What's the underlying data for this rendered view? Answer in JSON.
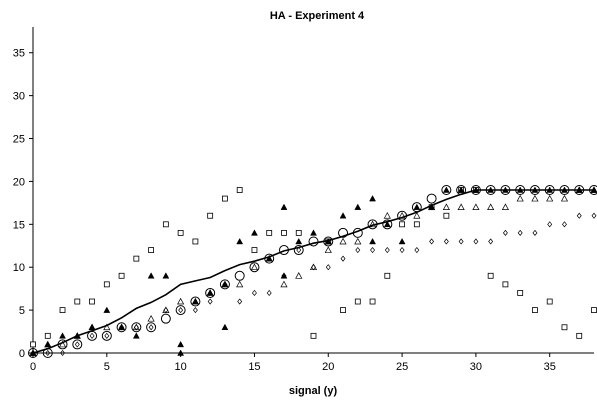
{
  "chart_data": {
    "type": "scatter",
    "title": "HA - Experiment 4",
    "xlabel": "signal (y)",
    "ylabel": "",
    "xlim": [
      0,
      38
    ],
    "ylim": [
      0,
      38
    ],
    "xticks": [
      0,
      5,
      10,
      15,
      20,
      25,
      30,
      35
    ],
    "yticks": [
      0,
      5,
      10,
      15,
      20,
      25,
      30,
      35
    ],
    "grid": false,
    "legend": "none",
    "series": [
      {
        "marker": "open-square",
        "points": [
          [
            0,
            1
          ],
          [
            1,
            2
          ],
          [
            2,
            5
          ],
          [
            3,
            6
          ],
          [
            4,
            6
          ],
          [
            5,
            8
          ],
          [
            6,
            9
          ],
          [
            7,
            11
          ],
          [
            8,
            12
          ],
          [
            9,
            15
          ],
          [
            10,
            14
          ],
          [
            11,
            13
          ],
          [
            12,
            16
          ],
          [
            13,
            18
          ],
          [
            14,
            19
          ],
          [
            15,
            12
          ],
          [
            16,
            14
          ],
          [
            17,
            14
          ],
          [
            18,
            14
          ],
          [
            19,
            2
          ],
          [
            20,
            13
          ],
          [
            21,
            5
          ],
          [
            22,
            6
          ],
          [
            23,
            6
          ],
          [
            24,
            9
          ],
          [
            25,
            15
          ],
          [
            26,
            15
          ],
          [
            27,
            17
          ],
          [
            28,
            16
          ],
          [
            29,
            19
          ],
          [
            30,
            19
          ],
          [
            31,
            9
          ],
          [
            32,
            8
          ],
          [
            33,
            7
          ],
          [
            34,
            5
          ],
          [
            35,
            6
          ],
          [
            36,
            3
          ],
          [
            37,
            2
          ],
          [
            38,
            5
          ]
        ]
      },
      {
        "marker": "filled-triangle",
        "points": [
          [
            0,
            0
          ],
          [
            1,
            1
          ],
          [
            2,
            2
          ],
          [
            3,
            2
          ],
          [
            4,
            3
          ],
          [
            5,
            5
          ],
          [
            6,
            3
          ],
          [
            7,
            2
          ],
          [
            8,
            9
          ],
          [
            9,
            9
          ],
          [
            10,
            0
          ],
          [
            10,
            1
          ],
          [
            11,
            6
          ],
          [
            12,
            7
          ],
          [
            13,
            3
          ],
          [
            13,
            8
          ],
          [
            14,
            13
          ],
          [
            15,
            14
          ],
          [
            16,
            11
          ],
          [
            17,
            9
          ],
          [
            17,
            17
          ],
          [
            18,
            13
          ],
          [
            19,
            14
          ],
          [
            20,
            13
          ],
          [
            21,
            16
          ],
          [
            22,
            17
          ],
          [
            23,
            13
          ],
          [
            23,
            18
          ],
          [
            24,
            15
          ],
          [
            25,
            13
          ],
          [
            26,
            17
          ],
          [
            27,
            17
          ],
          [
            28,
            19
          ],
          [
            29,
            19
          ],
          [
            30,
            19
          ],
          [
            31,
            19
          ],
          [
            32,
            19
          ],
          [
            33,
            19
          ],
          [
            34,
            19
          ],
          [
            35,
            19
          ],
          [
            36,
            19
          ],
          [
            37,
            19
          ],
          [
            38,
            19
          ]
        ]
      },
      {
        "marker": "open-triangle",
        "points": [
          [
            0,
            0
          ],
          [
            1,
            1
          ],
          [
            2,
            1
          ],
          [
            3,
            2
          ],
          [
            4,
            3
          ],
          [
            5,
            3
          ],
          [
            6,
            3
          ],
          [
            7,
            3
          ],
          [
            8,
            4
          ],
          [
            9,
            5
          ],
          [
            10,
            6
          ],
          [
            11,
            6
          ],
          [
            12,
            7
          ],
          [
            13,
            8
          ],
          [
            14,
            8
          ],
          [
            15,
            10
          ],
          [
            16,
            11
          ],
          [
            17,
            8
          ],
          [
            18,
            9
          ],
          [
            19,
            10
          ],
          [
            20,
            12
          ],
          [
            21,
            13
          ],
          [
            22,
            13
          ],
          [
            23,
            15
          ],
          [
            24,
            16
          ],
          [
            25,
            16
          ],
          [
            26,
            16
          ],
          [
            27,
            17
          ],
          [
            28,
            17
          ],
          [
            29,
            17
          ],
          [
            30,
            17
          ],
          [
            31,
            17
          ],
          [
            32,
            17
          ],
          [
            33,
            18
          ],
          [
            34,
            18
          ],
          [
            35,
            18
          ],
          [
            36,
            18
          ],
          [
            37,
            19
          ],
          [
            38,
            19
          ]
        ]
      },
      {
        "marker": "open-diamond",
        "points": [
          [
            0,
            0
          ],
          [
            1,
            0
          ],
          [
            2,
            0
          ],
          [
            3,
            1
          ],
          [
            4,
            2
          ],
          [
            5,
            2
          ],
          [
            6,
            3
          ],
          [
            7,
            3
          ],
          [
            8,
            3
          ],
          [
            9,
            5
          ],
          [
            10,
            5
          ],
          [
            11,
            5
          ],
          [
            12,
            6
          ],
          [
            13,
            8
          ],
          [
            14,
            6
          ],
          [
            15,
            7
          ],
          [
            16,
            7
          ],
          [
            17,
            9
          ],
          [
            18,
            12
          ],
          [
            19,
            10
          ],
          [
            20,
            10
          ],
          [
            21,
            11
          ],
          [
            22,
            12
          ],
          [
            23,
            12
          ],
          [
            24,
            12
          ],
          [
            25,
            12
          ],
          [
            26,
            12
          ],
          [
            27,
            13
          ],
          [
            28,
            13
          ],
          [
            29,
            13
          ],
          [
            30,
            13
          ],
          [
            31,
            13
          ],
          [
            32,
            14
          ],
          [
            33,
            14
          ],
          [
            34,
            14
          ],
          [
            35,
            15
          ],
          [
            36,
            15
          ],
          [
            37,
            16
          ],
          [
            38,
            16
          ]
        ]
      },
      {
        "marker": "open-circle",
        "points": [
          [
            0,
            0
          ],
          [
            1,
            0
          ],
          [
            2,
            1
          ],
          [
            3,
            1
          ],
          [
            4,
            2
          ],
          [
            5,
            2
          ],
          [
            6,
            3
          ],
          [
            7,
            3
          ],
          [
            8,
            3
          ],
          [
            9,
            4
          ],
          [
            10,
            5
          ],
          [
            11,
            6
          ],
          [
            12,
            7
          ],
          [
            13,
            8
          ],
          [
            14,
            9
          ],
          [
            15,
            10
          ],
          [
            16,
            11
          ],
          [
            17,
            12
          ],
          [
            18,
            12
          ],
          [
            19,
            13
          ],
          [
            20,
            13
          ],
          [
            21,
            14
          ],
          [
            22,
            14
          ],
          [
            23,
            15
          ],
          [
            24,
            15
          ],
          [
            25,
            16
          ],
          [
            26,
            17
          ],
          [
            27,
            18
          ],
          [
            28,
            19
          ],
          [
            29,
            19
          ],
          [
            30,
            19
          ],
          [
            31,
            19
          ],
          [
            32,
            19
          ],
          [
            33,
            19
          ],
          [
            34,
            19
          ],
          [
            35,
            19
          ],
          [
            36,
            19
          ],
          [
            37,
            19
          ],
          [
            38,
            19
          ]
        ]
      },
      {
        "marker": "line",
        "points": [
          [
            0,
            0
          ],
          [
            1,
            0.5
          ],
          [
            2,
            1.2
          ],
          [
            3,
            2.0
          ],
          [
            4,
            2.6
          ],
          [
            5,
            3.2
          ],
          [
            6,
            4.1
          ],
          [
            7,
            5.2
          ],
          [
            8,
            5.9
          ],
          [
            9,
            6.8
          ],
          [
            10,
            8.0
          ],
          [
            11,
            8.4
          ],
          [
            12,
            8.8
          ],
          [
            13,
            9.6
          ],
          [
            14,
            10.3
          ],
          [
            15,
            10.7
          ],
          [
            16,
            11.2
          ],
          [
            17,
            11.9
          ],
          [
            18,
            12.3
          ],
          [
            19,
            12.8
          ],
          [
            20,
            13.1
          ],
          [
            21,
            13.6
          ],
          [
            22,
            14.2
          ],
          [
            23,
            14.9
          ],
          [
            24,
            15.3
          ],
          [
            25,
            15.8
          ],
          [
            26,
            16.4
          ],
          [
            27,
            17.2
          ],
          [
            28,
            17.9
          ],
          [
            29,
            18.5
          ],
          [
            30,
            19
          ],
          [
            31,
            19
          ],
          [
            32,
            19
          ],
          [
            33,
            19
          ],
          [
            34,
            19
          ],
          [
            35,
            19
          ],
          [
            36,
            19
          ],
          [
            37,
            19
          ],
          [
            38,
            19
          ]
        ]
      }
    ]
  }
}
